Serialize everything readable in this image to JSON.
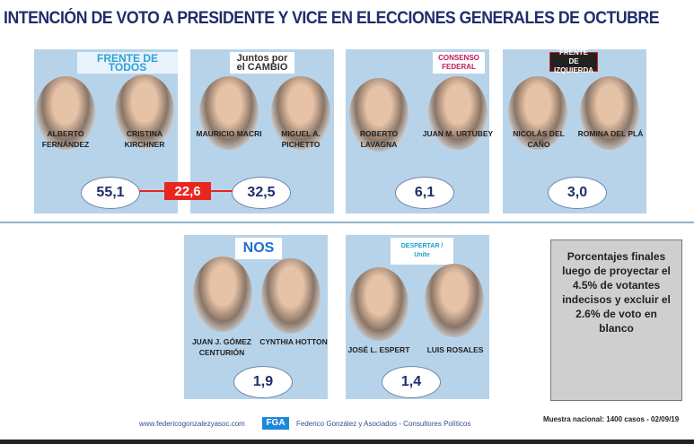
{
  "title": "INTENCIÓN DE VOTO A PRESIDENTE Y VICE EN ELECCIONES GENERALES DE OCTUBRE",
  "parties": [
    {
      "logo": "FRENTE DE TODOS",
      "candidates": [
        "ALBERTO FERNÁNDEZ",
        "CRISTINA KIRCHNER"
      ],
      "value": "55,1"
    },
    {
      "logo": "Juntos por el CAMBIO",
      "candidates": [
        "MAURICIO MACRI",
        "MIGUEL A. PICHETTO"
      ],
      "value": "32,5"
    },
    {
      "logo": "CONSENSO FEDERAL",
      "candidates": [
        "ROBERTO LAVAGNA",
        "JUAN M. URTUBEY"
      ],
      "value": "6,1"
    },
    {
      "logo": "FRENTE DE IZQUIERDA",
      "candidates": [
        "NICOLÁS DEL CAÑO",
        "ROMINA DEL PLÁ"
      ],
      "value": "3,0"
    },
    {
      "logo": "NOS",
      "candidates": [
        "JUAN J. GÓMEZ CENTURIÓN",
        "CYNTHIA HOTTON"
      ],
      "value": "1,9"
    },
    {
      "logo": "DESPERTAR / Unite",
      "candidates": [
        "JOSÉ L. ESPERT",
        "LUIS ROSALES"
      ],
      "value": "1,4"
    }
  ],
  "difference": "22,6",
  "note": "Porcentajes finales luego de proyectar el 4.5% de votantes indecisos y excluir el 2.6% de voto en blanco",
  "footer": {
    "website": "www.federicogonzalezyasoc.com",
    "logo": "FGA",
    "company": "Federico González y Asociados - Consultores Políticos",
    "sample": "Muestra nacional: 1400 casos - 02/09/19"
  },
  "colors": {
    "panel": "#b7d3ea",
    "title": "#1f2d6b",
    "difference": "#e8261f"
  }
}
